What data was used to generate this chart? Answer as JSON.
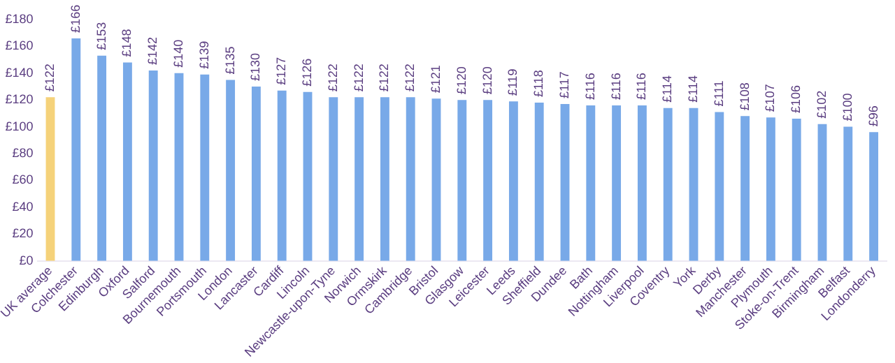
{
  "chart_data": {
    "type": "bar",
    "categories": [
      "UK average",
      "Colchester",
      "Edinburgh",
      "Oxford",
      "Salford",
      "Bournemouth",
      "Portsmouth",
      "London",
      "Lancaster",
      "Cardiff",
      "Lincoln",
      "Newcastle-upon-Tyne",
      "Norwich",
      "Ormskirk",
      "Cambridge",
      "Bristol",
      "Glasgow",
      "Leicester",
      "Leeds",
      "Sheffield",
      "Dundee",
      "Bath",
      "Nottingham",
      "Liverpool",
      "Coventry",
      "York",
      "Derby",
      "Manchester",
      "Plymouth",
      "Stoke-on-Trent",
      "Birmingham",
      "Belfast",
      "Londonderry"
    ],
    "values": [
      122,
      166,
      153,
      148,
      142,
      140,
      139,
      135,
      130,
      127,
      126,
      122,
      122,
      122,
      122,
      121,
      120,
      120,
      119,
      118,
      117,
      116,
      116,
      116,
      114,
      114,
      111,
      108,
      107,
      106,
      102,
      100,
      96
    ],
    "value_labels": [
      "£122",
      "£166",
      "£153",
      "£148",
      "£142",
      "£140",
      "£139",
      "£135",
      "£130",
      "£127",
      "£126",
      "£122",
      "£122",
      "£122",
      "£122",
      "£121",
      "£120",
      "£120",
      "£119",
      "£118",
      "£117",
      "£116",
      "£116",
      "£116",
      "£114",
      "£114",
      "£111",
      "£108",
      "£107",
      "£106",
      "£102",
      "£100",
      "£96"
    ],
    "colors": [
      "#f5d27a",
      "#78a9e8",
      "#78a9e8",
      "#78a9e8",
      "#78a9e8",
      "#78a9e8",
      "#78a9e8",
      "#78a9e8",
      "#78a9e8",
      "#78a9e8",
      "#78a9e8",
      "#78a9e8",
      "#78a9e8",
      "#78a9e8",
      "#78a9e8",
      "#78a9e8",
      "#78a9e8",
      "#78a9e8",
      "#78a9e8",
      "#78a9e8",
      "#78a9e8",
      "#78a9e8",
      "#78a9e8",
      "#78a9e8",
      "#78a9e8",
      "#78a9e8",
      "#78a9e8",
      "#78a9e8",
      "#78a9e8",
      "#78a9e8",
      "#78a9e8",
      "#78a9e8",
      "#78a9e8"
    ],
    "ylim": [
      0,
      180
    ],
    "yticks": [
      {
        "value": 0,
        "label": "£0"
      },
      {
        "value": 20,
        "label": "£20"
      },
      {
        "value": 40,
        "label": "£40"
      },
      {
        "value": 60,
        "label": "£60"
      },
      {
        "value": 80,
        "label": "£80"
      },
      {
        "value": 100,
        "label": "£100"
      },
      {
        "value": 120,
        "label": "£120"
      },
      {
        "value": 140,
        "label": "£140"
      },
      {
        "value": 160,
        "label": "£160"
      },
      {
        "value": 180,
        "label": "£180"
      }
    ],
    "grid": false,
    "legend": false
  }
}
